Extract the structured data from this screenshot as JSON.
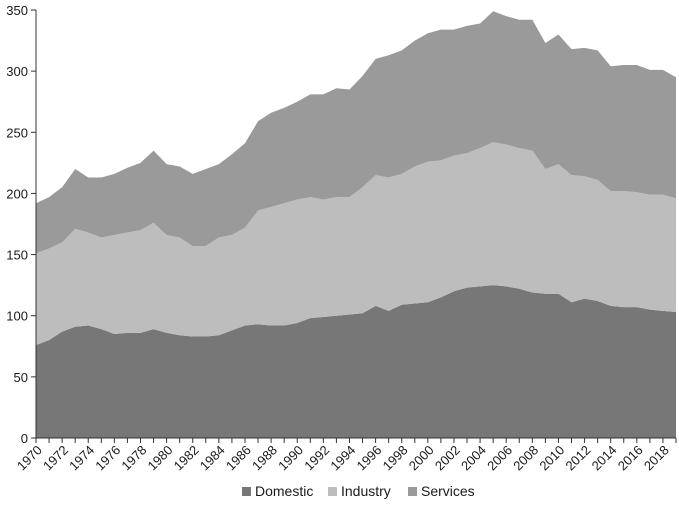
{
  "chart_data": {
    "type": "area",
    "stacked": true,
    "title": "",
    "xlabel": "",
    "ylabel": "",
    "x": [
      1970,
      1971,
      1972,
      1973,
      1974,
      1975,
      1976,
      1977,
      1978,
      1979,
      1980,
      1981,
      1982,
      1983,
      1984,
      1985,
      1986,
      1987,
      1988,
      1989,
      1990,
      1991,
      1992,
      1993,
      1994,
      1995,
      1996,
      1997,
      1998,
      1999,
      2000,
      2001,
      2002,
      2003,
      2004,
      2005,
      2006,
      2007,
      2008,
      2009,
      2010,
      2011,
      2012,
      2013,
      2014,
      2015,
      2016,
      2017,
      2018,
      2019
    ],
    "xlim": [
      1970,
      2019
    ],
    "ylim": [
      0,
      350
    ],
    "x_tick_labels": [
      "1970",
      "1972",
      "1974",
      "1976",
      "1978",
      "1980",
      "1982",
      "1984",
      "1986",
      "1988",
      "1990",
      "1992",
      "1994",
      "1996",
      "1998",
      "2000",
      "2002",
      "2004",
      "2006",
      "2008",
      "2010",
      "2012",
      "2014",
      "2016",
      "2018"
    ],
    "y_tick_labels": [
      "0",
      "50",
      "100",
      "150",
      "200",
      "250",
      "300",
      "350"
    ],
    "grid": false,
    "legend_position": "bottom",
    "series": [
      {
        "name": "Domestic",
        "color": "#777777",
        "values": [
          76,
          80,
          87,
          91,
          92,
          89,
          85,
          86,
          86,
          89,
          86,
          84,
          83,
          83,
          84,
          88,
          92,
          93,
          92,
          92,
          94,
          98,
          99,
          100,
          101,
          102,
          108,
          104,
          109,
          110,
          111,
          115,
          120,
          123,
          124,
          125,
          124,
          122,
          119,
          118,
          118,
          111,
          114,
          112,
          108,
          107,
          107,
          105,
          104,
          103
        ]
      },
      {
        "name": "Industry",
        "color": "#bdbdbd",
        "values": [
          75,
          75,
          73,
          80,
          76,
          75,
          81,
          82,
          84,
          87,
          80,
          80,
          74,
          74,
          80,
          78,
          80,
          93,
          97,
          100,
          101,
          99,
          96,
          97,
          96,
          103,
          107,
          109,
          107,
          112,
          115,
          112,
          111,
          110,
          113,
          117,
          116,
          115,
          116,
          102,
          106,
          104,
          100,
          99,
          94,
          95,
          94,
          94,
          95,
          93
        ]
      },
      {
        "name": "Services",
        "color": "#9a9a9a",
        "values": [
          41,
          42,
          45,
          49,
          45,
          49,
          50,
          53,
          55,
          59,
          58,
          58,
          59,
          63,
          60,
          66,
          69,
          73,
          77,
          78,
          80,
          84,
          86,
          89,
          88,
          91,
          95,
          100,
          101,
          103,
          105,
          107,
          103,
          104,
          102,
          107,
          105,
          105,
          107,
          103,
          106,
          103,
          105,
          106,
          102,
          103,
          104,
          102,
          102,
          99
        ]
      }
    ]
  }
}
